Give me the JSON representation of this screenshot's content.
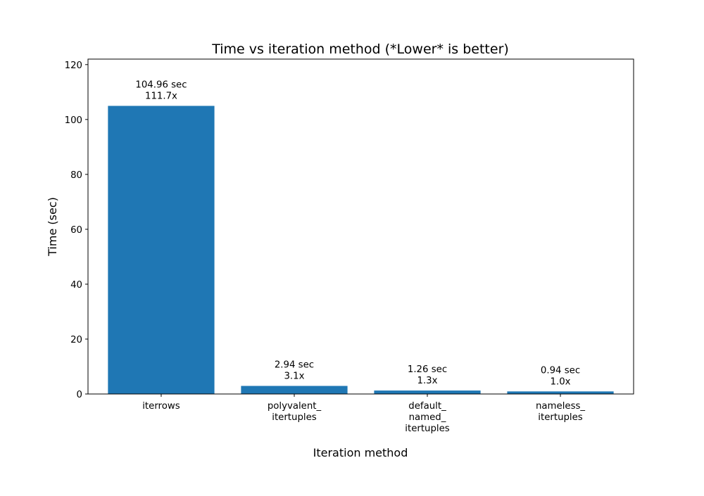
{
  "chart_data": {
    "type": "bar",
    "title": "Time vs iteration method (*Lower* is better)",
    "xlabel": "Iteration method",
    "ylabel": "Time (sec)",
    "ylim": [
      0,
      122
    ],
    "yticks": [
      0,
      20,
      40,
      60,
      80,
      100,
      120
    ],
    "grid": false,
    "bar_color": "#1f77b4",
    "categories": [
      [
        "iterrows"
      ],
      [
        "polyvalent_",
        "itertuples"
      ],
      [
        "default_",
        "named_",
        "itertuples"
      ],
      [
        "nameless_",
        "itertuples"
      ]
    ],
    "values": [
      104.96,
      2.94,
      1.26,
      0.94
    ],
    "data_labels": [
      [
        "104.96 sec",
        "111.7x"
      ],
      [
        "2.94 sec",
        "3.1x"
      ],
      [
        "1.26 sec",
        "1.3x"
      ],
      [
        "0.94 sec",
        "1.0x"
      ]
    ]
  }
}
